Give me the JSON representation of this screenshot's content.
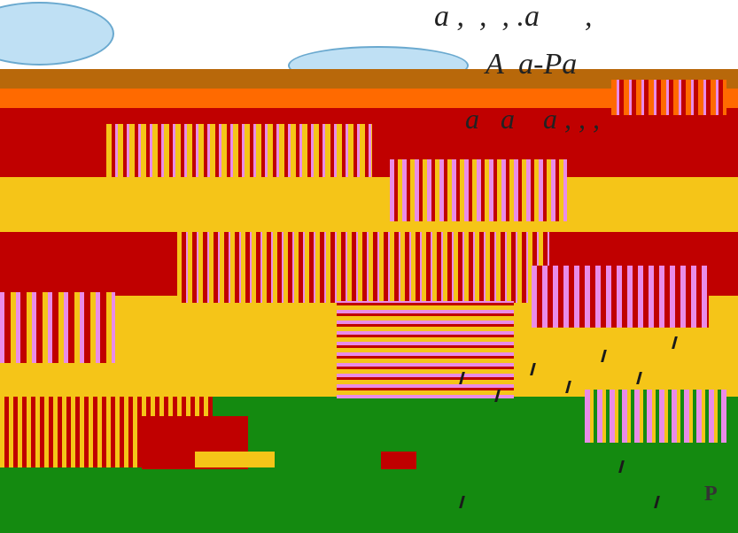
{
  "captions": {
    "line1": "a ,  ,  , .a      ,",
    "line2": "A  a-Pa",
    "line3": "a   a    a , , ,"
  },
  "corner_letter": "P",
  "colors": {
    "sky": "#ffffff",
    "cloud": "#bfe0f4",
    "cloud_outline": "#6aa9cf",
    "brown": "#b8680a",
    "orange": "#ff6a00",
    "red": "#c00000",
    "yellow": "#f5c518",
    "green": "#148a10",
    "pink": "#e98ce8",
    "dark": "#1a1a1a"
  }
}
